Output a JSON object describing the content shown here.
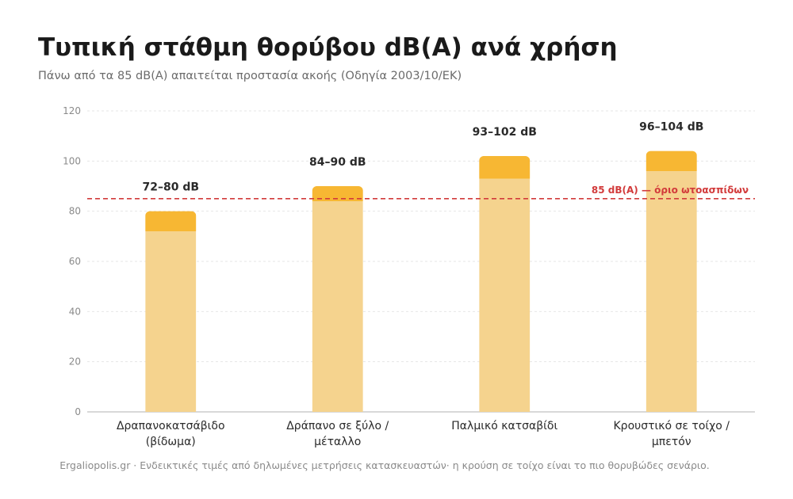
{
  "page": {
    "title": "Τυπική στάθμη θορύβου dB(A) ανά χρήση",
    "subtitle": "Πάνω από τα 85 dB(A) απαιτείται προστασία ακοής (Οδηγία 2003/10/ΕΚ)",
    "footer": "Ergaliopolis.gr · Ενδεικτικές τιμές από δηλωμένες μετρήσεις κατασκευαστών· η κρούση σε τοίχο είναι το πιο θορυβώδες σενάριο."
  },
  "chart_data": {
    "type": "bar",
    "categories": [
      [
        "Δραπανοκατσάβιδο",
        "(βίδωμα)"
      ],
      [
        "Δράπανο σε ξύλο /",
        "μέταλλο"
      ],
      [
        "Παλμικό κατσαβίδι"
      ],
      [
        "Κρουστικό σε τοίχο /",
        "μπετόν"
      ]
    ],
    "ranges": [
      [
        72,
        80
      ],
      [
        84,
        90
      ],
      [
        93,
        102
      ],
      [
        96,
        104
      ]
    ],
    "data_labels": [
      "72–80 dB",
      "84–90 dB",
      "93–102 dB",
      "96–104 dB"
    ],
    "ylim": [
      0,
      120
    ],
    "yticks": [
      0,
      20,
      40,
      60,
      80,
      100,
      120
    ],
    "grid": true,
    "threshold": {
      "value": 85,
      "label": "85 dB(A) — όριο ωτοασπίδων",
      "color": "#d23b3b"
    },
    "colors": {
      "range_low": "#f5d38e",
      "range_high": "#f7b733",
      "grid": "#e6e6e6",
      "axis": "#cccccc"
    }
  }
}
